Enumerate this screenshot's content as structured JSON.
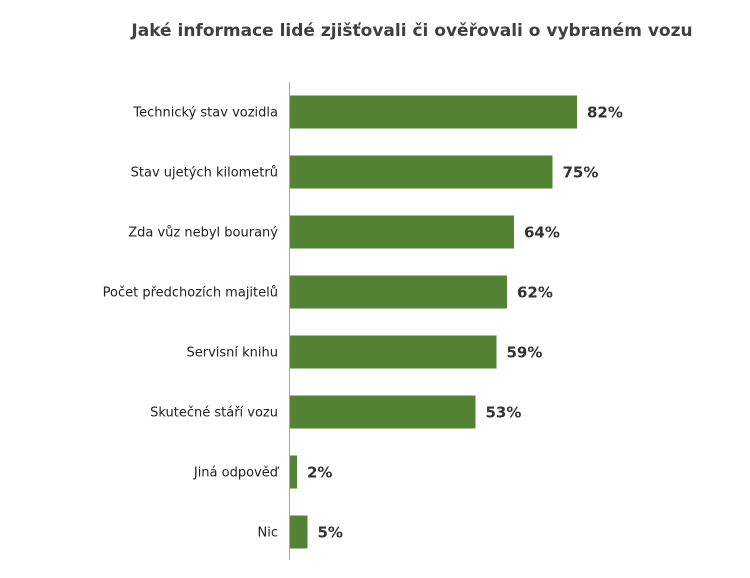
{
  "chart_data": {
    "type": "bar",
    "orientation": "horizontal",
    "title": "Jaké informace lidé zjišťovali či ověřovali o vybraném vozu",
    "categories": [
      "Technický stav vozidla",
      "Stav ujetých kilometrů",
      "Zda vůz nebyl bouraný",
      "Počet předchozích majitelů",
      "Servisní knihu",
      "Skutečné stáří vozu",
      "Jiná odpověď",
      "Nic"
    ],
    "values": [
      82,
      75,
      64,
      62,
      59,
      53,
      2,
      5
    ],
    "value_labels": [
      "82%",
      "75%",
      "64%",
      "62%",
      "59%",
      "53%",
      "2%",
      "5%"
    ],
    "unit": "%",
    "xlim": [
      0,
      100
    ],
    "grid": false,
    "legend": "none",
    "bar_color": "#548235"
  }
}
